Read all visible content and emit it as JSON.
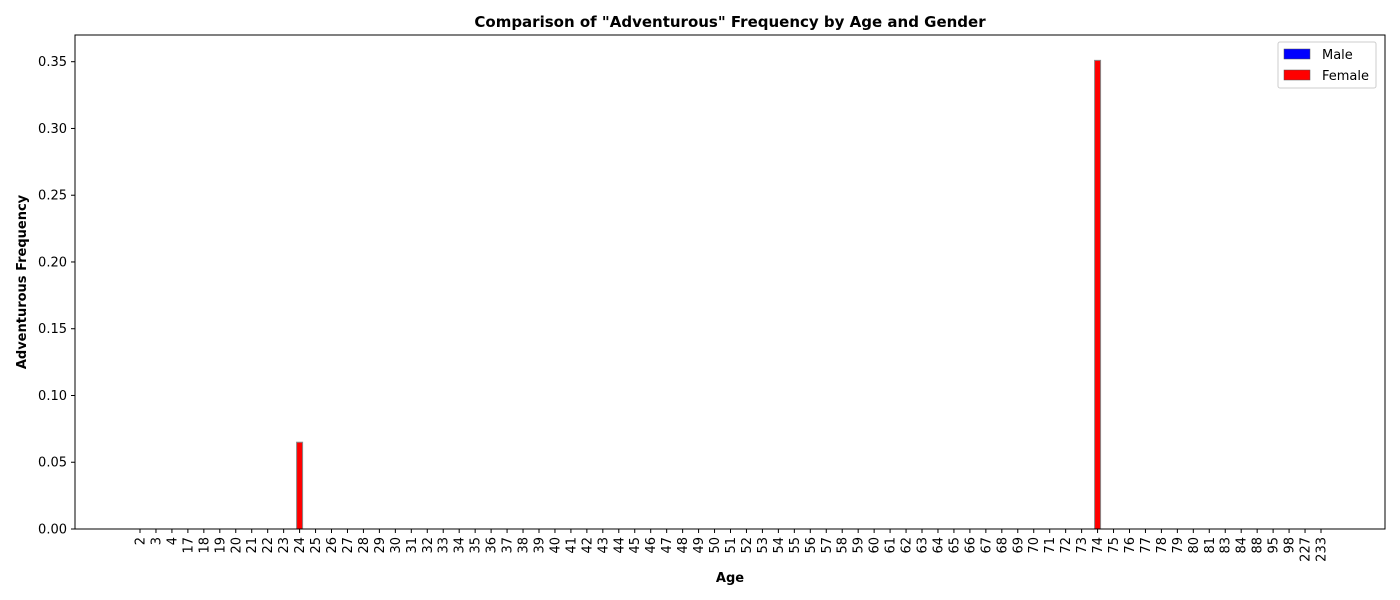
{
  "chart_data": {
    "type": "bar",
    "title": "Comparison of \"Adventurous\" Frequency by Age and Gender",
    "xlabel": "Age",
    "ylabel": "Adventurous Frequency",
    "ylim": [
      0,
      0.37
    ],
    "yticks": [
      "0.00",
      "0.05",
      "0.10",
      "0.15",
      "0.20",
      "0.25",
      "0.30",
      "0.35"
    ],
    "categories": [
      "2",
      "3",
      "4",
      "17",
      "18",
      "19",
      "20",
      "21",
      "22",
      "23",
      "24",
      "25",
      "26",
      "27",
      "28",
      "29",
      "30",
      "31",
      "32",
      "33",
      "34",
      "35",
      "36",
      "37",
      "38",
      "39",
      "40",
      "41",
      "42",
      "43",
      "44",
      "45",
      "46",
      "47",
      "48",
      "49",
      "50",
      "51",
      "52",
      "53",
      "54",
      "55",
      "56",
      "57",
      "58",
      "59",
      "60",
      "61",
      "62",
      "63",
      "64",
      "65",
      "66",
      "67",
      "68",
      "69",
      "70",
      "71",
      "72",
      "73",
      "74",
      "75",
      "76",
      "77",
      "78",
      "79",
      "80",
      "81",
      "83",
      "84",
      "88",
      "95",
      "98",
      "227",
      "233"
    ],
    "series": [
      {
        "name": "Male",
        "color": "#0000ff",
        "values": [
          0,
          0,
          0,
          0,
          0,
          0,
          0,
          0,
          0,
          0,
          0,
          0,
          0,
          0,
          0,
          0,
          0,
          0,
          0,
          0,
          0,
          0,
          0,
          0,
          0,
          0,
          0,
          0,
          0,
          0,
          0,
          0,
          0,
          0,
          0,
          0,
          0,
          0,
          0,
          0,
          0,
          0,
          0,
          0,
          0,
          0,
          0,
          0,
          0,
          0,
          0,
          0,
          0,
          0,
          0,
          0,
          0,
          0,
          0,
          0,
          0,
          0,
          0,
          0,
          0,
          0,
          0,
          0,
          0,
          0,
          0,
          0,
          0,
          0,
          0
        ]
      },
      {
        "name": "Female",
        "color": "#ff0000",
        "values": [
          0,
          0,
          0,
          0,
          0,
          0,
          0,
          0,
          0,
          0,
          0.065,
          0,
          0,
          0,
          0,
          0,
          0,
          0,
          0,
          0,
          0,
          0,
          0,
          0,
          0,
          0,
          0,
          0,
          0,
          0,
          0,
          0,
          0,
          0,
          0,
          0,
          0,
          0,
          0,
          0,
          0,
          0,
          0,
          0,
          0,
          0,
          0,
          0,
          0,
          0,
          0,
          0,
          0,
          0,
          0,
          0,
          0,
          0,
          0,
          0,
          0.351,
          0,
          0,
          0,
          0,
          0,
          0,
          0,
          0,
          0,
          0,
          0,
          0,
          0,
          0
        ]
      }
    ],
    "legend_position": "top-right",
    "grid": false
  }
}
